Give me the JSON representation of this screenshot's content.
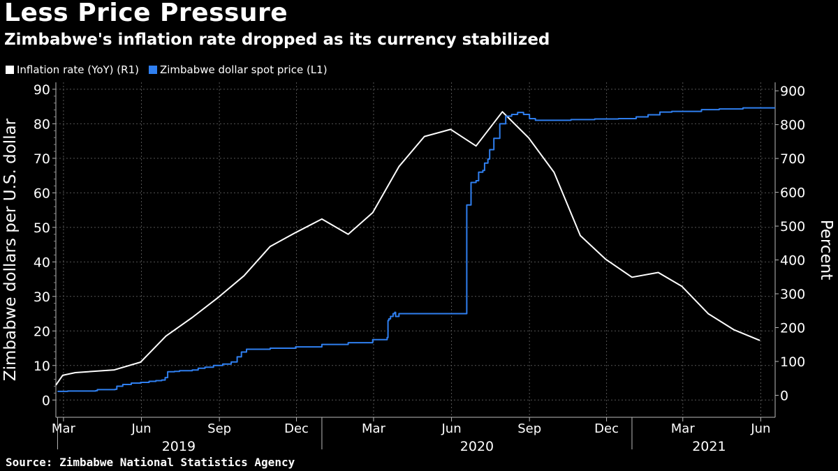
{
  "header": {
    "title": "Less Price Pressure",
    "subtitle": "Zimbabwe's inflation rate dropped as its currency stabilized"
  },
  "legend": [
    {
      "label": "Inflation rate (YoY) (R1)",
      "color": "#ffffff"
    },
    {
      "label": "Zimbabwe dollar spot price (L1)",
      "color": "#2f7ff0"
    }
  ],
  "source": "Source: Zimbabwe National Statistics Agency",
  "chart_data": {
    "type": "line",
    "title": "Less Price Pressure",
    "subtitle": "Zimbabwe's inflation rate dropped as its currency stabilized",
    "x_range": [
      "2019-02-20",
      "2021-06-18"
    ],
    "grid": true,
    "legend_position": "top-left",
    "left_axis": {
      "label": "Zimbabwe dollars per U.S. dollar",
      "ylim": [
        -5,
        92
      ],
      "ticks": [
        0,
        10,
        20,
        30,
        40,
        50,
        60,
        70,
        80,
        90
      ]
    },
    "right_axis": {
      "label": "Percent",
      "ylim": [
        -65,
        925
      ],
      "ticks": [
        0,
        100,
        200,
        300,
        400,
        500,
        600,
        700,
        800,
        900
      ]
    },
    "x_tick_labels": [
      {
        "label": "Mar",
        "date": "2019-03-01"
      },
      {
        "label": "Jun",
        "date": "2019-06-01"
      },
      {
        "label": "Sep",
        "date": "2019-09-01"
      },
      {
        "label": "Dec",
        "date": "2019-12-01"
      },
      {
        "label": "Mar",
        "date": "2020-03-01"
      },
      {
        "label": "Jun",
        "date": "2020-06-01"
      },
      {
        "label": "Sep",
        "date": "2020-09-01"
      },
      {
        "label": "Dec",
        "date": "2020-12-01"
      },
      {
        "label": "Mar",
        "date": "2021-03-01"
      },
      {
        "label": "Jun",
        "date": "2021-06-01"
      }
    ],
    "year_labels": [
      {
        "label": "2019",
        "date": "2019-07-15"
      },
      {
        "label": "2020",
        "date": "2020-07-01"
      },
      {
        "label": "2021",
        "date": "2021-04-01"
      }
    ],
    "year_separators": [
      "2019-02-22",
      "2019-12-31",
      "2020-12-31"
    ],
    "series": [
      {
        "name": "Inflation rate (YoY) (R1)",
        "axis": "right",
        "color": "#ffffff",
        "step": false,
        "points": [
          [
            "2019-02-20",
            30
          ],
          [
            "2019-02-28",
            59
          ],
          [
            "2019-03-15",
            67
          ],
          [
            "2019-04-30",
            75
          ],
          [
            "2019-05-31",
            98
          ],
          [
            "2019-06-30",
            175
          ],
          [
            "2019-07-31",
            230
          ],
          [
            "2019-08-31",
            290
          ],
          [
            "2019-09-30",
            353
          ],
          [
            "2019-10-31",
            440
          ],
          [
            "2019-11-30",
            481
          ],
          [
            "2019-12-31",
            521
          ],
          [
            "2020-01-31",
            476
          ],
          [
            "2020-02-29",
            540
          ],
          [
            "2020-03-31",
            676
          ],
          [
            "2020-04-30",
            765
          ],
          [
            "2020-05-31",
            786
          ],
          [
            "2020-06-30",
            737
          ],
          [
            "2020-07-31",
            838
          ],
          [
            "2020-08-31",
            761
          ],
          [
            "2020-09-30",
            659
          ],
          [
            "2020-10-31",
            472
          ],
          [
            "2020-11-30",
            402
          ],
          [
            "2020-12-31",
            349
          ],
          [
            "2021-01-31",
            363
          ],
          [
            "2021-02-28",
            322
          ],
          [
            "2021-03-31",
            241
          ],
          [
            "2021-04-30",
            194
          ],
          [
            "2021-05-31",
            162
          ]
        ]
      },
      {
        "name": "Zimbabwe dollar spot price (L1)",
        "axis": "left",
        "color": "#2f7ff0",
        "step": true,
        "points": [
          [
            "2019-02-22",
            2.5
          ],
          [
            "2019-03-05",
            2.5
          ],
          [
            "2019-03-06",
            2.6
          ],
          [
            "2019-04-08",
            2.7
          ],
          [
            "2019-04-10",
            3.0
          ],
          [
            "2019-05-01",
            3.1
          ],
          [
            "2019-05-03",
            4.0
          ],
          [
            "2019-05-10",
            4.5
          ],
          [
            "2019-05-20",
            4.9
          ],
          [
            "2019-05-31",
            5.1
          ],
          [
            "2019-06-10",
            5.4
          ],
          [
            "2019-06-18",
            5.6
          ],
          [
            "2019-06-25",
            5.8
          ],
          [
            "2019-06-29",
            6.5
          ],
          [
            "2019-07-02",
            8.2
          ],
          [
            "2019-07-10",
            8.3
          ],
          [
            "2019-07-16",
            8.5
          ],
          [
            "2019-07-31",
            8.7
          ],
          [
            "2019-08-07",
            9.2
          ],
          [
            "2019-08-15",
            9.5
          ],
          [
            "2019-08-25",
            10.0
          ],
          [
            "2019-09-05",
            10.4
          ],
          [
            "2019-09-15",
            11.0
          ],
          [
            "2019-09-22",
            12.5
          ],
          [
            "2019-09-27",
            13.9
          ],
          [
            "2019-10-03",
            14.7
          ],
          [
            "2019-10-31",
            15.0
          ],
          [
            "2019-11-30",
            15.4
          ],
          [
            "2019-12-31",
            16.1
          ],
          [
            "2020-01-31",
            16.6
          ],
          [
            "2020-02-29",
            17.5
          ],
          [
            "2020-03-17",
            18.1
          ],
          [
            "2020-03-18",
            23.0
          ],
          [
            "2020-03-19",
            23.5
          ],
          [
            "2020-03-21",
            24.2
          ],
          [
            "2020-03-24",
            25.0
          ],
          [
            "2020-03-26",
            25.4
          ],
          [
            "2020-03-27",
            24.2
          ],
          [
            "2020-03-31",
            25.0
          ],
          [
            "2020-06-18",
            25.0
          ],
          [
            "2020-06-19",
            56.5
          ],
          [
            "2020-06-24",
            63.0
          ],
          [
            "2020-06-30",
            63.5
          ],
          [
            "2020-07-03",
            66.0
          ],
          [
            "2020-07-08",
            66.5
          ],
          [
            "2020-07-10",
            68.6
          ],
          [
            "2020-07-14",
            69.8
          ],
          [
            "2020-07-16",
            72.5
          ],
          [
            "2020-07-21",
            75.8
          ],
          [
            "2020-07-28",
            80.0
          ],
          [
            "2020-08-04",
            82.2
          ],
          [
            "2020-08-11",
            82.7
          ],
          [
            "2020-08-18",
            83.3
          ],
          [
            "2020-08-25",
            82.7
          ],
          [
            "2020-09-01",
            81.5
          ],
          [
            "2020-09-08",
            81.0
          ],
          [
            "2020-09-28",
            81.0
          ],
          [
            "2020-10-20",
            81.2
          ],
          [
            "2020-11-17",
            81.4
          ],
          [
            "2020-12-15",
            81.5
          ],
          [
            "2021-01-05",
            82.0
          ],
          [
            "2021-01-19",
            82.6
          ],
          [
            "2021-02-02",
            83.4
          ],
          [
            "2021-02-16",
            83.6
          ],
          [
            "2021-03-23",
            84.1
          ],
          [
            "2021-04-13",
            84.3
          ],
          [
            "2021-05-11",
            84.6
          ],
          [
            "2021-06-18",
            84.6
          ]
        ]
      }
    ]
  }
}
